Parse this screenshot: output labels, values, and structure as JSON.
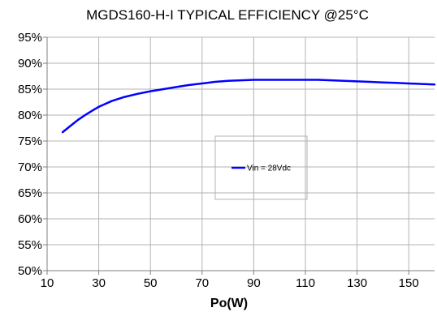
{
  "chart_data": {
    "type": "line",
    "title": "MGDS160-H-I TYPICAL EFFICIENCY @25°C",
    "xlabel": "Po(W)",
    "ylabel": "",
    "xlim": [
      10,
      160
    ],
    "ylim": [
      50,
      95
    ],
    "xticks": [
      10,
      30,
      50,
      70,
      90,
      110,
      130,
      150
    ],
    "xtick_labels": [
      "10",
      "30",
      "50",
      "70",
      "90",
      "110",
      "130",
      "150"
    ],
    "yticks": [
      50,
      55,
      60,
      65,
      70,
      75,
      80,
      85,
      90,
      95
    ],
    "ytick_labels": [
      "50%",
      "55%",
      "60%",
      "65%",
      "70%",
      "75%",
      "80%",
      "85%",
      "90%",
      "95%"
    ],
    "grid": true,
    "legend_position": "center",
    "series": [
      {
        "name": "Vin = 28Vdc",
        "color": "#0000ff",
        "x": [
          16,
          18,
          20,
          22,
          25,
          28,
          30,
          35,
          40,
          45,
          50,
          55,
          60,
          65,
          70,
          75,
          80,
          85,
          90,
          95,
          100,
          105,
          110,
          115,
          120,
          125,
          130,
          135,
          140,
          145,
          150,
          155,
          160
        ],
        "y": [
          76.7,
          77.5,
          78.3,
          79.1,
          80.1,
          81.0,
          81.6,
          82.7,
          83.5,
          84.1,
          84.6,
          85.0,
          85.4,
          85.8,
          86.1,
          86.4,
          86.6,
          86.7,
          86.8,
          86.8,
          86.8,
          86.8,
          86.8,
          86.8,
          86.7,
          86.6,
          86.5,
          86.4,
          86.3,
          86.2,
          86.1,
          86.0,
          85.9
        ]
      }
    ]
  }
}
